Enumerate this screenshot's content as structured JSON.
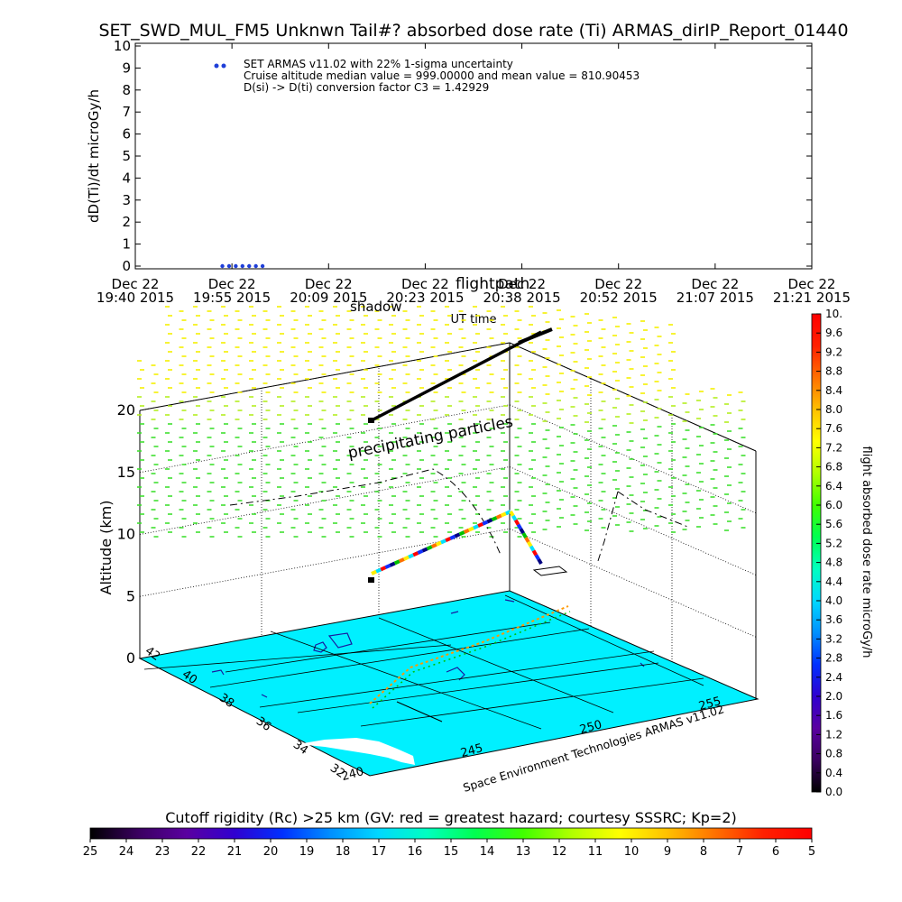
{
  "title": "SET_SWD_MUL_FM5 Unknwn Tail#? absorbed dose rate (Ti) ARMAS_dirIP_Report_01440",
  "chart_data": [
    {
      "type": "scatter",
      "title": "SET_SWD_MUL_FM5 Unknwn Tail#? absorbed dose rate (Ti) ARMAS_dirIP_Report_01440",
      "ylabel": "dD(Ti)/dt microGy/h",
      "xlabel": "UT time",
      "ylim": [
        0,
        10
      ],
      "yticks": [
        "0",
        "1",
        "2",
        "3",
        "4",
        "5",
        "6",
        "7",
        "8",
        "9",
        "10"
      ],
      "xticks": [
        {
          "date": "Dec 22",
          "time": "19:40 2015"
        },
        {
          "date": "Dec 22",
          "time": "19:55 2015"
        },
        {
          "date": "Dec 22",
          "time": "20:09 2015"
        },
        {
          "date": "Dec 22",
          "time": "20:23 2015"
        },
        {
          "date": "Dec 22",
          "time": "20:38 2015"
        },
        {
          "date": "Dec 22",
          "time": "20:52 2015"
        },
        {
          "date": "Dec 22",
          "time": "21:07 2015"
        },
        {
          "date": "Dec 22",
          "time": "21:21 2015"
        }
      ],
      "legend_lines": [
        "SET ARMAS v11.02 with 22% 1-sigma uncertainty",
        "Cruise altitude median value = 999.00000 and mean value = 810.90453",
        "D(si) -> D(ti) conversion factor C3 = 1.42929"
      ],
      "series": [
        {
          "name": "SET ARMAS v11.02 with 22% 1-sigma uncertainty",
          "color": "#1f3fd8",
          "x": [
            "19:53",
            "19:54",
            "19:55",
            "19:56",
            "19:57",
            "19:58",
            "19:59"
          ],
          "values": [
            0,
            0,
            0,
            0,
            0,
            0,
            0
          ]
        }
      ]
    },
    {
      "type": "3d-scatter",
      "zlabel": "Altitude (km)",
      "zticks": [
        "0",
        "5",
        "10",
        "15",
        "20"
      ],
      "lat_ticks": [
        "32",
        "34",
        "36",
        "38",
        "40",
        "42"
      ],
      "lon_ticks": [
        "240",
        "245",
        "250",
        "255"
      ],
      "annotations": [
        "precipitating particles",
        "flightpath",
        "shadow"
      ],
      "credit": "Space Environment Technologies ARMAS v11.02",
      "surface_color": "#00f0ff",
      "flightpath_color": "#000000"
    }
  ],
  "colorbar_right": {
    "label": "flight absorbed dose rate microGy/h",
    "ticks": [
      "0.0",
      "0.4",
      "0.8",
      "1.2",
      "1.6",
      "2.0",
      "2.4",
      "2.8",
      "3.2",
      "3.6",
      "4.0",
      "4.4",
      "4.8",
      "5.2",
      "5.6",
      "6.0",
      "6.4",
      "6.8",
      "7.2",
      "7.6",
      "8.0",
      "8.4",
      "8.8",
      "9.2",
      "9.6",
      "10."
    ],
    "colors": [
      "#000000",
      "#3a0060",
      "#5a00a0",
      "#3000d0",
      "#0030ff",
      "#0090ff",
      "#00d8ff",
      "#00ffc0",
      "#00ff50",
      "#40ff00",
      "#b0ff00",
      "#ffff00",
      "#ffc000",
      "#ff7000",
      "#ff2000",
      "#ff0000"
    ]
  },
  "colorbar_bottom": {
    "label": "Cutoff rigidity (Rc) >25 km (GV: red = greatest hazard; courtesy SSSRC; Kp=2)",
    "ticks": [
      "25",
      "24",
      "23",
      "22",
      "21",
      "20",
      "19",
      "18",
      "17",
      "16",
      "15",
      "14",
      "13",
      "12",
      "11",
      "10",
      "9",
      "8",
      "7",
      "6",
      "5"
    ],
    "colors": [
      "#000000",
      "#3a0060",
      "#5a00a0",
      "#3000d0",
      "#0030ff",
      "#0090ff",
      "#00d8ff",
      "#00ffc0",
      "#00ff50",
      "#40ff00",
      "#b0ff00",
      "#ffff00",
      "#ffc000",
      "#ff7000",
      "#ff2000",
      "#ff0000"
    ]
  }
}
